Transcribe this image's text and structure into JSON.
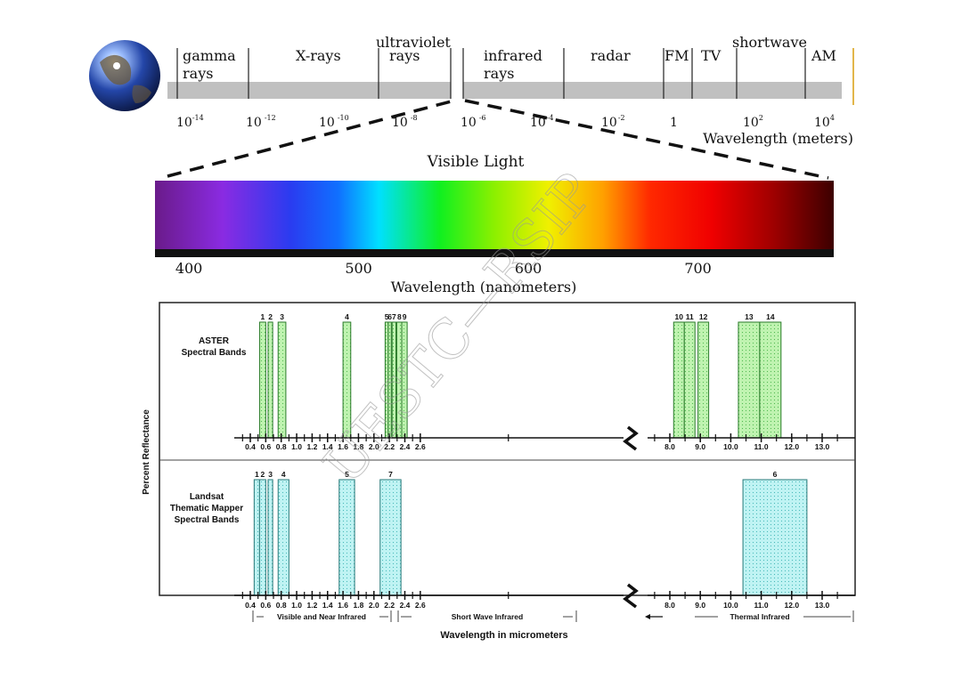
{
  "spectrum": {
    "regions": [
      {
        "label1": "gamma",
        "label2": "rays"
      },
      {
        "label1": "X-rays",
        "label2": ""
      },
      {
        "label1": "ultraviolet",
        "label2": "rays"
      },
      {
        "label1": "infrared",
        "label2": "rays"
      },
      {
        "label1": "radar",
        "label2": ""
      },
      {
        "label1": "FM",
        "label2": ""
      },
      {
        "label1": "TV",
        "label2": ""
      },
      {
        "label1": "shortwave",
        "label2": ""
      },
      {
        "label1": "AM",
        "label2": ""
      }
    ],
    "ticks": [
      {
        "base": "10",
        "exp": "-14"
      },
      {
        "base": "10",
        "exp": "-12"
      },
      {
        "base": "10",
        "exp": "-10"
      },
      {
        "base": "10",
        "exp": "-8"
      },
      {
        "base": "10",
        "exp": "-6"
      },
      {
        "base": "10",
        "exp": "-4"
      },
      {
        "base": "10",
        "exp": "-2"
      },
      {
        "base": "1",
        "exp": ""
      },
      {
        "base": "10",
        "exp": "2"
      },
      {
        "base": "10",
        "exp": "4"
      }
    ],
    "axis_label": "Wavelength (meters)",
    "bar_color": "#c0c0c0"
  },
  "visible": {
    "title": "Visible Light",
    "ticks": [
      "400",
      "500",
      "600",
      "700"
    ],
    "tick_values": [
      400,
      500,
      600,
      700
    ],
    "range_nm": [
      380,
      780
    ],
    "axis_label": "Wavelength (nanometers)"
  },
  "bands_chart": {
    "y_label": "Percent Reflectance",
    "x_label": "Wavelength in micrometers",
    "aster": {
      "label_lines": [
        "ASTER",
        "Spectral Bands"
      ],
      "color": "#b8f0a8",
      "bands": [
        {
          "label": "1",
          "start": 0.52,
          "end": 0.6
        },
        {
          "label": "2",
          "start": 0.63,
          "end": 0.69
        },
        {
          "label": "3",
          "start": 0.76,
          "end": 0.86
        },
        {
          "label": "4",
          "start": 1.6,
          "end": 1.7
        },
        {
          "label": "5",
          "start": 2.145,
          "end": 2.185
        },
        {
          "label": "6",
          "start": 2.185,
          "end": 2.225
        },
        {
          "label": "7",
          "start": 2.235,
          "end": 2.285
        },
        {
          "label": "8",
          "start": 2.295,
          "end": 2.365
        },
        {
          "label": "9",
          "start": 2.36,
          "end": 2.43
        },
        {
          "label": "10",
          "start": 8.125,
          "end": 8.475
        },
        {
          "label": "11",
          "start": 8.475,
          "end": 8.825
        },
        {
          "label": "12",
          "start": 8.925,
          "end": 9.275
        },
        {
          "label": "13",
          "start": 10.25,
          "end": 10.95
        },
        {
          "label": "14",
          "start": 10.95,
          "end": 11.65
        }
      ],
      "ticks": [
        "0.4",
        "0.6",
        "0.8",
        "1.0",
        "1.2",
        "1.4",
        "1.6",
        "1.8",
        "2.0",
        "2.2",
        "2.4",
        "2.6",
        "8.0",
        "9.0",
        "10.0",
        "11.0",
        "12.0",
        "13.0"
      ]
    },
    "landsat": {
      "label_lines": [
        "Landsat",
        "Thematic Mapper",
        "Spectral Bands"
      ],
      "color": "#b4f0f0",
      "bands": [
        {
          "label": "1",
          "start": 0.45,
          "end": 0.52
        },
        {
          "label": "2",
          "start": 0.52,
          "end": 0.6
        },
        {
          "label": "3",
          "start": 0.63,
          "end": 0.69
        },
        {
          "label": "4",
          "start": 0.76,
          "end": 0.9
        },
        {
          "label": "5",
          "start": 1.55,
          "end": 1.75
        },
        {
          "label": "7",
          "start": 2.08,
          "end": 2.35
        },
        {
          "label": "6",
          "start": 10.4,
          "end": 12.5
        }
      ],
      "ticks": [
        "0.4",
        "0.6",
        "0.8",
        "1.0",
        "1.2",
        "1.4",
        "1.6",
        "1.8",
        "2.0",
        "2.2",
        "2.4",
        "2.6",
        "8.0",
        "9.0",
        "10.0",
        "11.0",
        "12.0",
        "13.0"
      ]
    },
    "regions": [
      {
        "label": "Visible and Near Infrared"
      },
      {
        "label": "Short Wave Infrared"
      },
      {
        "label": "Thermal Infrared"
      }
    ]
  },
  "watermark": "UESTC—RSIP"
}
